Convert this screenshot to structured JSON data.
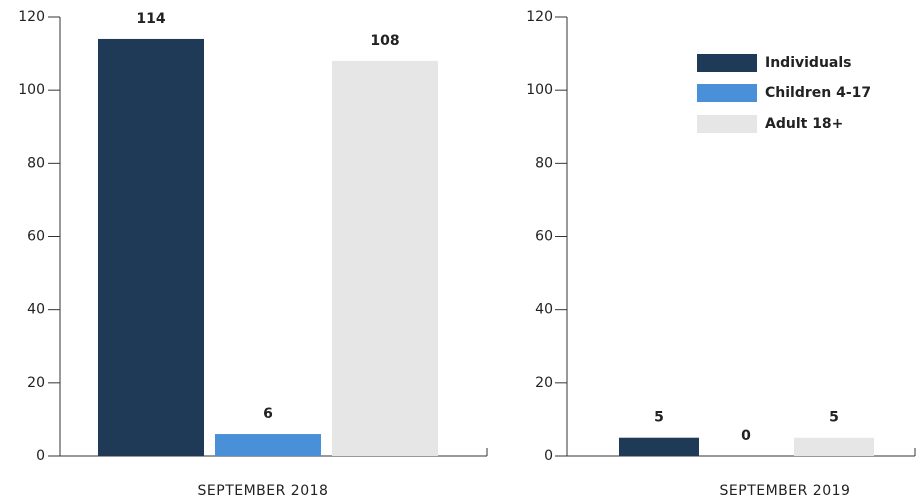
{
  "chart_data": [
    {
      "type": "bar",
      "categories": [
        "SEPTEMBER 2018"
      ],
      "series": [
        {
          "color": "#1e3a56",
          "values": [
            114
          ]
        },
        {
          "color": "#4a90d9",
          "values": [
            6
          ]
        },
        {
          "color": "#e6e6e6",
          "values": [
            108
          ]
        }
      ],
      "ylim": [
        0,
        120
      ],
      "yticks": [
        0,
        20,
        40,
        60,
        80,
        100,
        120
      ]
    },
    {
      "type": "bar",
      "categories": [
        "SEPTEMBER 2019"
      ],
      "series": [
        {
          "name": "Individuals",
          "color": "#1e3a56",
          "values": [
            5
          ]
        },
        {
          "name": "Children 4-17",
          "color": "#4a90d9",
          "values": [
            0
          ]
        },
        {
          "name": "Adult 18+",
          "color": "#e6e6e6",
          "values": [
            5
          ]
        }
      ],
      "ylim": [
        0,
        120
      ],
      "yticks": [
        0,
        20,
        40,
        60,
        80,
        100,
        120
      ],
      "legend": "upper right"
    }
  ]
}
